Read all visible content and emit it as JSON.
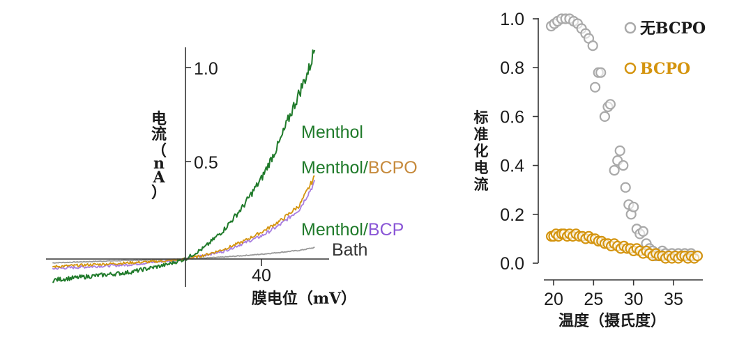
{
  "chart_data": [
    {
      "type": "line",
      "ylabel_chars": [
        "电",
        "流",
        "（",
        "n",
        "A",
        "）"
      ],
      "ylabel": "电流（nA）",
      "xlabel": "膜电位（mV）",
      "xlim": [
        -70,
        70
      ],
      "ylim": [
        -0.12,
        1.12
      ],
      "x_ticks": [
        {
          "value": 40,
          "label": "40"
        }
      ],
      "y_ticks": [
        {
          "value": 0.5,
          "label": "0.5"
        },
        {
          "value": 1.0,
          "label": "1.0"
        }
      ],
      "series": [
        {
          "name": "Menthol",
          "label": "Menthol",
          "color": "#1f7a2a",
          "x": [
            -70,
            -60,
            -50,
            -40,
            -30,
            -20,
            -10,
            0,
            10,
            20,
            30,
            40,
            50,
            55,
            60,
            65,
            68
          ],
          "y": [
            -0.11,
            -0.1,
            -0.09,
            -0.08,
            -0.07,
            -0.05,
            -0.03,
            0.0,
            0.06,
            0.15,
            0.27,
            0.42,
            0.62,
            0.75,
            0.87,
            0.99,
            1.1
          ]
        },
        {
          "name": "Menthol/BCPO",
          "label_prefix": "Menthol/",
          "label_suffix": "BCPO",
          "color": "#d4940e",
          "x": [
            -70,
            -50,
            -30,
            -10,
            0,
            10,
            20,
            30,
            40,
            50,
            60,
            68
          ],
          "y": [
            -0.04,
            -0.03,
            -0.02,
            -0.01,
            0.0,
            0.02,
            0.05,
            0.09,
            0.14,
            0.2,
            0.28,
            0.43
          ]
        },
        {
          "name": "Menthol/BCP",
          "label_prefix": "Menthol/",
          "label_suffix": "BCP",
          "color": "#a87ee0",
          "x": [
            -70,
            -50,
            -30,
            -10,
            0,
            10,
            20,
            30,
            40,
            50,
            60,
            68
          ],
          "y": [
            -0.05,
            -0.04,
            -0.03,
            -0.01,
            0.0,
            0.02,
            0.04,
            0.08,
            0.12,
            0.18,
            0.26,
            0.4
          ]
        },
        {
          "name": "Bath",
          "label": "Bath",
          "color": "#999999",
          "x": [
            -70,
            -40,
            -20,
            0,
            20,
            40,
            60,
            68
          ],
          "y": [
            -0.02,
            -0.01,
            -0.005,
            0.0,
            0.01,
            0.025,
            0.045,
            0.06
          ]
        }
      ],
      "label_colors": {
        "prefix": "#1f7a2a",
        "bcpo_suffix": "#c68a3c",
        "bcp_suffix": "#8a56d6",
        "bath": "#333333"
      }
    },
    {
      "type": "scatter",
      "ylabel_chars": [
        "标",
        "准",
        "化",
        "电",
        "流"
      ],
      "ylabel": "标准化电流",
      "xlabel": "温度（摄氏度）",
      "xlim": [
        18.5,
        38.5
      ],
      "ylim": [
        -0.02,
        1.02
      ],
      "x_ticks": [
        {
          "value": 20,
          "label": "20"
        },
        {
          "value": 25,
          "label": "25"
        },
        {
          "value": 30,
          "label": "30"
        },
        {
          "value": 35,
          "label": "35"
        }
      ],
      "y_ticks": [
        {
          "value": 0.0,
          "label": "0.0"
        },
        {
          "value": 0.2,
          "label": "0.2"
        },
        {
          "value": 0.4,
          "label": "0.4"
        },
        {
          "value": 0.6,
          "label": "0.6"
        },
        {
          "value": 0.8,
          "label": "0.8"
        },
        {
          "value": 1.0,
          "label": "1.0"
        }
      ],
      "legend": "top-right",
      "series": [
        {
          "name": "无BCPO",
          "color": "#a9a9a9",
          "x": [
            19.7,
            20.1,
            20.5,
            21.0,
            21.5,
            22.0,
            22.5,
            23.0,
            23.5,
            24.0,
            24.4,
            24.9,
            25.2,
            25.6,
            25.9,
            26.4,
            26.8,
            27.1,
            27.6,
            28.0,
            28.3,
            28.7,
            29.0,
            29.4,
            29.7,
            30.0,
            30.4,
            30.8,
            31.2,
            31.6,
            32.0,
            32.4,
            32.8,
            33.2,
            33.6,
            34.0,
            34.4,
            34.8,
            35.2,
            35.6,
            36.0,
            36.4,
            36.8,
            37.2,
            37.6,
            38.0
          ],
          "y": [
            0.97,
            0.98,
            0.99,
            1.0,
            1.0,
            1.0,
            0.99,
            0.98,
            0.96,
            0.94,
            0.92,
            0.89,
            0.72,
            0.78,
            0.78,
            0.6,
            0.64,
            0.65,
            0.38,
            0.42,
            0.46,
            0.4,
            0.31,
            0.24,
            0.2,
            0.23,
            0.14,
            0.12,
            0.13,
            0.08,
            0.06,
            0.05,
            0.03,
            0.04,
            0.05,
            0.04,
            0.03,
            0.04,
            0.03,
            0.04,
            0.03,
            0.04,
            0.03,
            0.04,
            0.03,
            0.03
          ]
        },
        {
          "name": "BCPO",
          "color": "#d4940e",
          "x": [
            19.7,
            20.0,
            20.3,
            20.6,
            21.0,
            21.3,
            21.7,
            22.0,
            22.4,
            22.8,
            23.2,
            23.6,
            24.0,
            24.4,
            24.8,
            25.2,
            25.6,
            26.0,
            26.4,
            26.8,
            27.2,
            27.6,
            28.0,
            28.4,
            28.8,
            29.2,
            29.6,
            30.0,
            30.4,
            30.8,
            31.2,
            31.6,
            32.0,
            32.4,
            32.8,
            33.2,
            33.6,
            34.0,
            34.4,
            34.8,
            35.2,
            35.6,
            36.0,
            36.4,
            36.8,
            37.2,
            37.6,
            38.0
          ],
          "y": [
            0.11,
            0.11,
            0.12,
            0.11,
            0.12,
            0.12,
            0.11,
            0.12,
            0.11,
            0.12,
            0.11,
            0.11,
            0.1,
            0.11,
            0.1,
            0.1,
            0.09,
            0.09,
            0.08,
            0.08,
            0.07,
            0.08,
            0.07,
            0.06,
            0.07,
            0.06,
            0.06,
            0.05,
            0.06,
            0.05,
            0.04,
            0.05,
            0.04,
            0.03,
            0.04,
            0.03,
            0.03,
            0.02,
            0.03,
            0.02,
            0.03,
            0.02,
            0.03,
            0.03,
            0.02,
            0.03,
            0.02,
            0.03
          ]
        }
      ]
    }
  ]
}
